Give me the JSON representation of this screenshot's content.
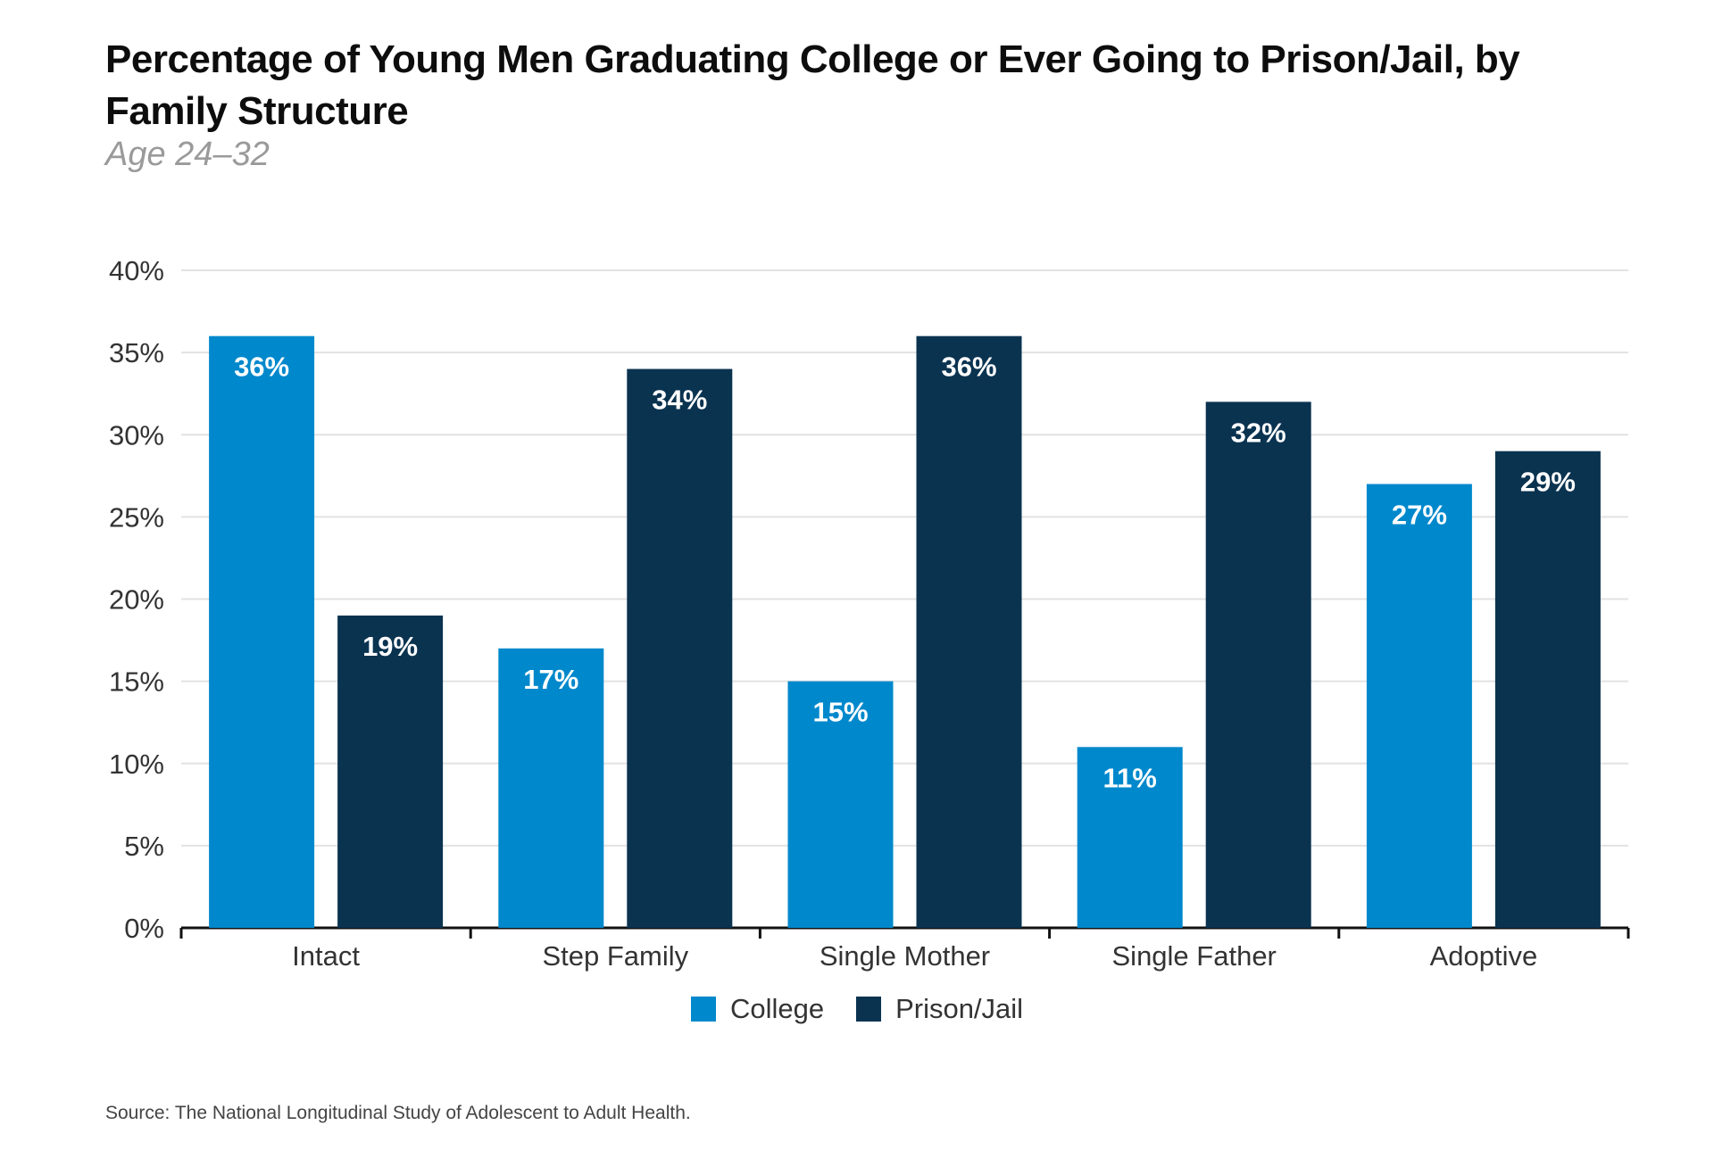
{
  "chart_data": {
    "type": "bar",
    "title": "Percentage of Young Men Graduating College or Ever Going to Prison/Jail, by Family Structure",
    "subtitle": "Age 24–32",
    "categories": [
      "Intact",
      "Step Family",
      "Single Mother",
      "Single Father",
      "Adoptive"
    ],
    "series": [
      {
        "name": "College",
        "values": [
          36,
          17,
          15,
          11,
          27
        ],
        "color": "#0088cc"
      },
      {
        "name": "Prison/Jail",
        "values": [
          19,
          34,
          36,
          32,
          29
        ],
        "color": "#0a3350"
      }
    ],
    "y_ticks": [
      "0%",
      "5%",
      "10%",
      "15%",
      "20%",
      "25%",
      "30%",
      "35%",
      "40%"
    ],
    "ylim": [
      0,
      40
    ],
    "value_suffix": "%",
    "grid": true,
    "legend_position": "bottom-center",
    "source": "Source: The National Longitudinal Study of Adolescent to Adult Health."
  }
}
